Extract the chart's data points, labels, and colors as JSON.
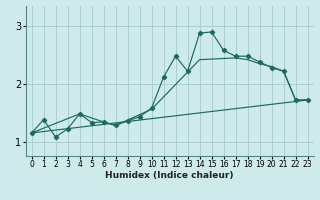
{
  "xlabel": "Humidex (Indice chaleur)",
  "bg_color": "#ceeaea",
  "grid_color": "#aacfcf",
  "line_color": "#1a6b5a",
  "xlim": [
    -0.5,
    23.5
  ],
  "ylim": [
    0.75,
    3.35
  ],
  "yticks": [
    1,
    2,
    3
  ],
  "xticks": [
    0,
    1,
    2,
    3,
    4,
    5,
    6,
    7,
    8,
    9,
    10,
    11,
    12,
    13,
    14,
    15,
    16,
    17,
    18,
    19,
    20,
    21,
    22,
    23
  ],
  "series1_x": [
    0,
    1,
    2,
    3,
    4,
    5,
    6,
    7,
    8,
    9,
    10,
    11,
    12,
    13,
    14,
    15,
    16,
    17,
    18,
    19,
    20,
    21,
    22,
    23
  ],
  "series1_y": [
    1.15,
    1.38,
    1.08,
    1.22,
    1.48,
    1.33,
    1.34,
    1.28,
    1.36,
    1.43,
    1.58,
    2.12,
    2.48,
    2.22,
    2.88,
    2.9,
    2.58,
    2.48,
    2.48,
    2.38,
    2.28,
    2.22,
    1.72,
    1.72
  ],
  "series2_x": [
    0,
    23
  ],
  "series2_y": [
    1.15,
    1.72
  ],
  "series3_x": [
    0,
    4,
    6,
    7,
    10,
    14,
    17,
    18,
    19,
    20,
    21,
    22,
    23
  ],
  "series3_y": [
    1.15,
    1.48,
    1.34,
    1.28,
    1.56,
    2.42,
    2.45,
    2.42,
    2.35,
    2.3,
    2.22,
    1.72,
    1.72
  ]
}
